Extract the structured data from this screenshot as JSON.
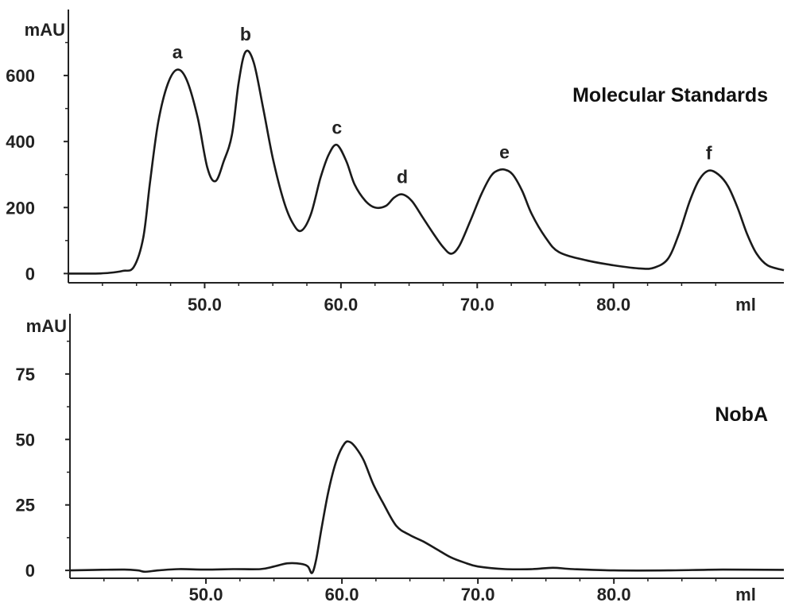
{
  "chart_data": [
    {
      "type": "line",
      "panel_label": "Molecular Standards",
      "ylabel": "mAU",
      "xunit": "ml",
      "xlim": [
        40.0,
        92.5
      ],
      "ylim": [
        -28,
        800
      ],
      "x_ticks": [
        50.0,
        60.0,
        70.0,
        80.0
      ],
      "x_tick_labels": [
        "50.0",
        "60.0",
        "70.0",
        "80.0"
      ],
      "y_ticks": [
        0,
        200,
        400,
        600
      ],
      "y_tick_labels": [
        "0",
        "200",
        "400",
        "600"
      ],
      "peaks": [
        {
          "label": "a",
          "x": 48.0,
          "y": 618
        },
        {
          "label": "b",
          "x": 53.0,
          "y": 672
        },
        {
          "label": "c",
          "x": 59.7,
          "y": 390
        },
        {
          "label": "d",
          "x": 64.5,
          "y": 240
        },
        {
          "label": "e",
          "x": 72.0,
          "y": 315
        },
        {
          "label": "f",
          "x": 87.0,
          "y": 312
        }
      ],
      "series": [
        {
          "x": [
            40.0,
            42.0,
            43.0,
            44.0,
            44.8,
            45.5,
            46.0,
            46.6,
            47.3,
            48.0,
            48.7,
            49.5,
            50.2,
            50.8,
            51.4,
            52.0,
            52.5,
            53.0,
            53.6,
            54.3,
            55.0,
            55.8,
            56.5,
            57.1,
            57.8,
            58.5,
            59.1,
            59.7,
            60.4,
            61.0,
            61.8,
            62.5,
            63.3,
            63.9,
            64.5,
            65.2,
            66.0,
            66.8,
            67.5,
            68.1,
            68.7,
            69.5,
            70.3,
            71.0,
            71.5,
            72.0,
            72.6,
            73.3,
            74.0,
            75.0,
            76.0,
            78.0,
            80.0,
            82.0,
            83.0,
            84.0,
            84.8,
            85.6,
            86.3,
            87.0,
            87.7,
            88.4,
            89.1,
            89.8,
            90.5,
            91.3,
            92.5
          ],
          "y": [
            0,
            0,
            2,
            8,
            20,
            110,
            280,
            460,
            575,
            618,
            585,
            470,
            320,
            280,
            340,
            420,
            580,
            672,
            640,
            500,
            350,
            220,
            150,
            130,
            180,
            290,
            360,
            390,
            340,
            270,
            220,
            200,
            205,
            230,
            240,
            220,
            170,
            120,
            80,
            60,
            85,
            160,
            240,
            295,
            312,
            315,
            300,
            250,
            180,
            110,
            65,
            40,
            25,
            15,
            18,
            45,
            120,
            220,
            285,
            312,
            300,
            265,
            200,
            120,
            60,
            25,
            10
          ]
        }
      ]
    },
    {
      "type": "line",
      "panel_label": "NobA",
      "ylabel": "mAU",
      "xunit": "ml",
      "xlim": [
        40.0,
        92.5
      ],
      "ylim": [
        -3,
        98
      ],
      "x_ticks": [
        50.0,
        60.0,
        70.0,
        80.0
      ],
      "x_tick_labels": [
        "50.0",
        "60.0",
        "70.0",
        "80.0"
      ],
      "y_ticks": [
        0,
        25,
        50,
        75
      ],
      "y_tick_labels": [
        "0",
        "25",
        "50",
        "75"
      ],
      "series": [
        {
          "x": [
            40.0,
            42.0,
            44.0,
            45.0,
            45.5,
            46.5,
            48.0,
            50.0,
            52.0,
            54.0,
            55.0,
            56.0,
            57.0,
            57.5,
            57.8,
            58.1,
            58.5,
            59.0,
            59.6,
            60.2,
            60.6,
            61.0,
            61.6,
            62.3,
            63.0,
            64.0,
            65.0,
            66.0,
            67.0,
            68.0,
            69.0,
            70.0,
            72.0,
            74.0,
            75.5,
            77.0,
            80.0,
            84.0,
            88.0,
            92.5
          ],
          "y": [
            0,
            0.2,
            0.3,
            0,
            -0.5,
            0,
            0.5,
            0.3,
            0.5,
            0.5,
            1.5,
            2.7,
            2.5,
            1.5,
            -1,
            4,
            16,
            30,
            42,
            48.5,
            49,
            47,
            42,
            33,
            26,
            17,
            13.5,
            11,
            8,
            5,
            3,
            1.5,
            0.5,
            0.5,
            1,
            0.5,
            0,
            0,
            0.3,
            0.2
          ]
        }
      ]
    }
  ]
}
